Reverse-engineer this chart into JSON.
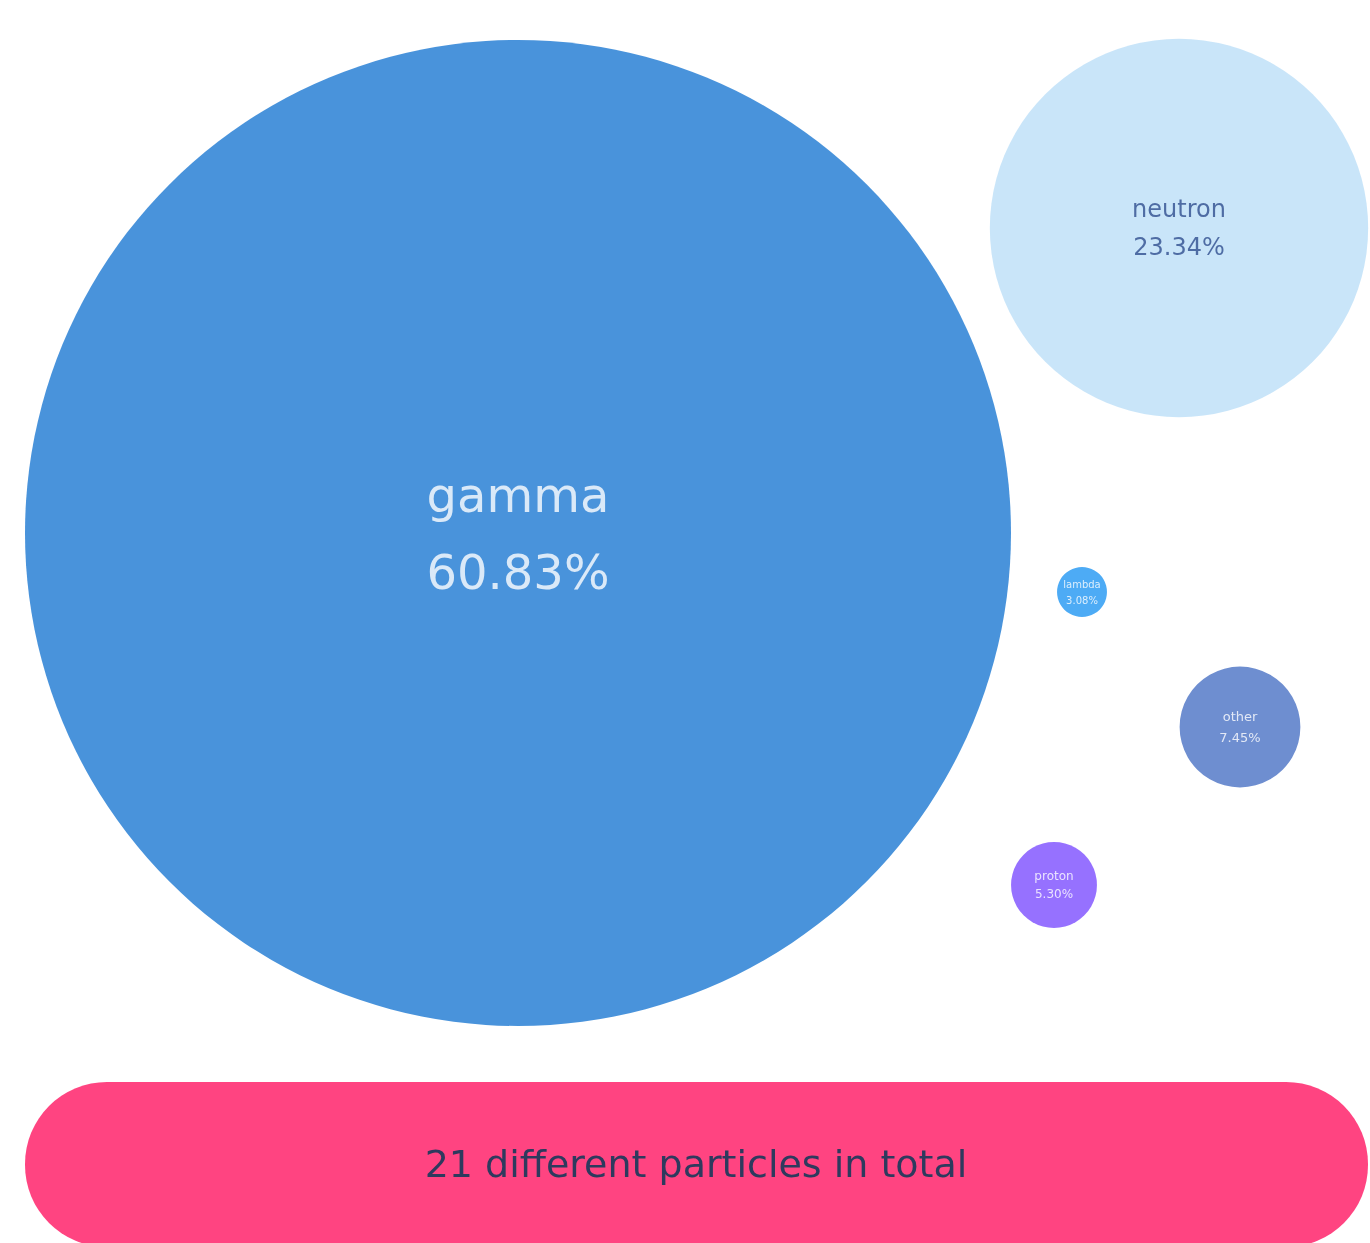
{
  "chart_data": {
    "type": "other",
    "categories": [
      "gamma",
      "neutron",
      "lambda",
      "other",
      "proton"
    ],
    "values": [
      60.83,
      23.34,
      3.08,
      7.45,
      5.3
    ],
    "value_labels": [
      "60.83%",
      "23.34%",
      "3.08%",
      "7.45%",
      "5.30%"
    ],
    "colors": [
      "#1b78d2",
      "#bcdff8",
      "#2196f3",
      "#4a72c4",
      "#7c4dff"
    ],
    "annotations": [
      "21 different particles in total"
    ]
  }
}
